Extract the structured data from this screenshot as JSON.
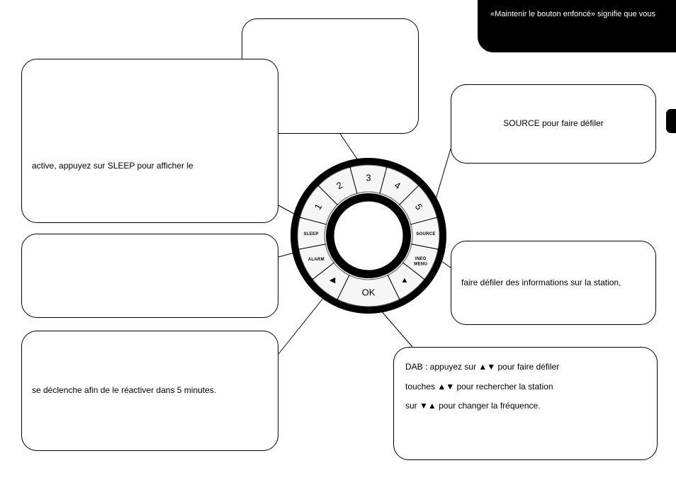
{
  "header": {
    "text": "«Maintenir le bouton enfoncé» signifie que vous",
    "bg_color": "#000000",
    "text_color": "#ffffff",
    "fontsize": 11
  },
  "callouts": {
    "top": {
      "text": ""
    },
    "sleep": {
      "text": "active, appuyez sur SLEEP pour afficher le"
    },
    "source": {
      "text": "SOURCE pour faire défiler"
    },
    "alarm": {
      "text": ""
    },
    "info": {
      "text": "faire défiler des informations sur la station,"
    },
    "snooze": {
      "text": "se déclenche afin de le réactiver dans 5 minutes."
    },
    "ok": {
      "line1": "DAB : appuyez sur ▲▼ pour faire défiler",
      "line2": "touches ▲▼ pour rechercher la station",
      "line3": "sur ▼▲ pour changer la fréquence."
    }
  },
  "dial": {
    "center_label": "",
    "presets": [
      "1",
      "2",
      "3",
      "4",
      "5"
    ],
    "buttons": {
      "sleep": "SLEEP",
      "alarm": "ALARM",
      "left_arrow": "◀",
      "ok": "OK",
      "right_arrow": "▲",
      "info_top": "INFO",
      "info_bottom": "MENU",
      "source": "SOURCE"
    },
    "style": {
      "outer_ring_color": "#000000",
      "button_fill": "#ffffff",
      "button_stroke": "#000000",
      "inner_circle_fill": "#ffffff",
      "inner_circle_stroke": "#000000",
      "center_fill": "#ffffff",
      "label_fontsize_small": 6,
      "label_fontsize_num": 13,
      "label_fontsize_ok": 13,
      "label_fontsize_arrow": 11
    }
  },
  "layout": {
    "page_bg": "#ffffff",
    "callout_border": "#000000",
    "callout_radius": 22,
    "connector_stroke": "#000000",
    "connector_width": 1
  }
}
